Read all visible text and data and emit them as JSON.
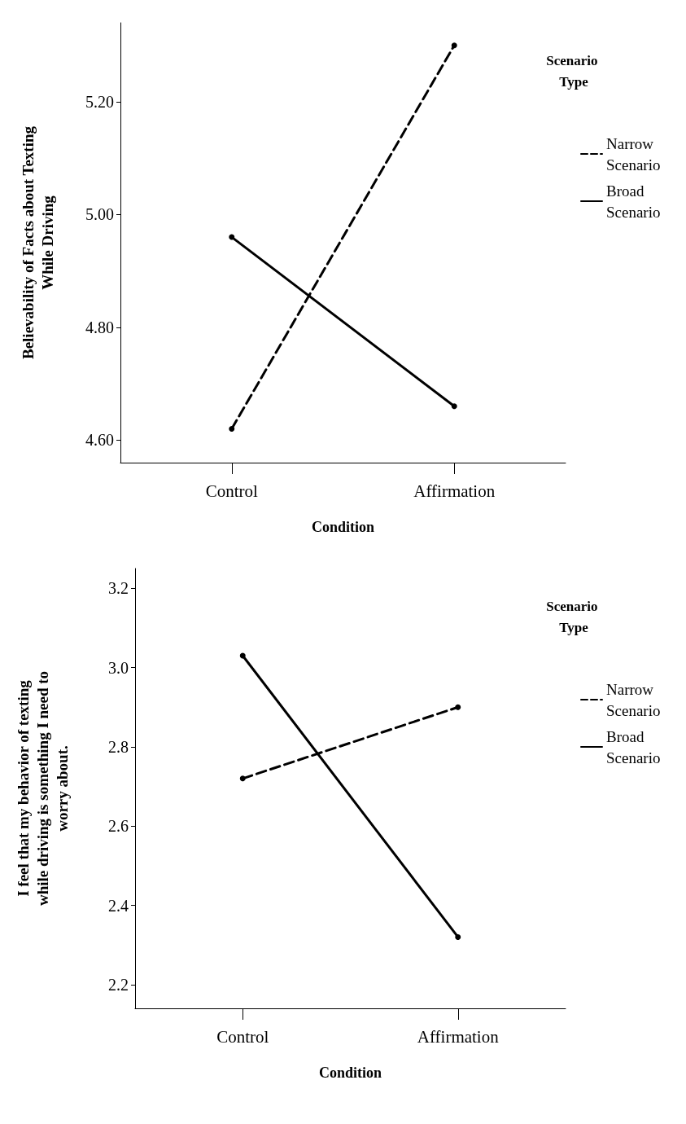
{
  "chart_data": [
    {
      "type": "line",
      "xlabel": "Condition",
      "ylabel": "Believability of Facts about Texting While Driving",
      "legend_title": "Scenario Type",
      "categories": [
        "Control",
        "Affirmation"
      ],
      "series": [
        {
          "name": "Narrow Scenario",
          "color": "#000000",
          "line_style": "dashed",
          "values": [
            4.62,
            5.3
          ]
        },
        {
          "name": "Broad Scenario",
          "color": "#000000",
          "line_style": "solid",
          "values": [
            4.96,
            4.66
          ]
        }
      ],
      "ylim": [
        4.56,
        5.34
      ],
      "yticks": [
        {
          "value": 4.6,
          "label": "4.60"
        },
        {
          "value": 4.8,
          "label": "4.80"
        },
        {
          "value": 5.0,
          "label": "5.00"
        },
        {
          "value": 5.2,
          "label": "5.20"
        }
      ],
      "grid": false,
      "legend": "top right",
      "marker": "circle"
    },
    {
      "type": "line",
      "xlabel": "Condition",
      "ylabel": "I feel that my behavior of texting while driving is something I need to worry about.",
      "legend_title": "Scenario Type",
      "categories": [
        "Control",
        "Affirmation"
      ],
      "series": [
        {
          "name": "Narrow Scenario",
          "color": "#000000",
          "line_style": "dashed",
          "values": [
            2.72,
            2.9
          ]
        },
        {
          "name": "Broad Scenario",
          "color": "#000000",
          "line_style": "solid",
          "values": [
            3.03,
            2.32
          ]
        }
      ],
      "ylim": [
        2.14,
        3.25
      ],
      "yticks": [
        2.2,
        2.4,
        2.6,
        2.8,
        {
          "value": 3,
          "label": "3.0"
        },
        3.2
      ],
      "grid": false,
      "legend": "top right",
      "marker": "circle"
    }
  ]
}
